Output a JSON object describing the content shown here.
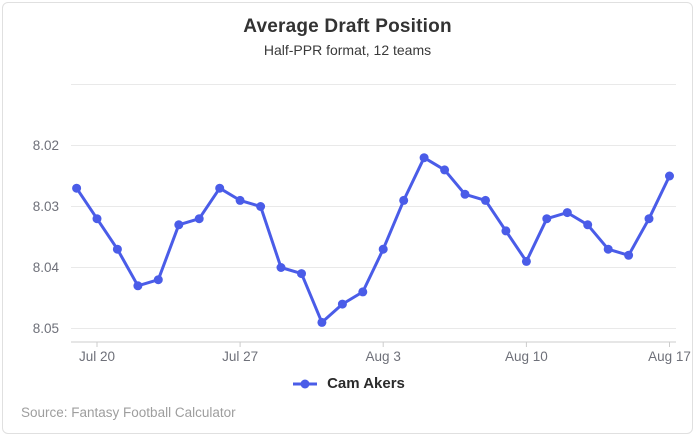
{
  "card": {
    "title": "Average Draft Position",
    "subtitle": "Half-PPR format, 12 teams",
    "source": "Source: Fantasy Football Calculator"
  },
  "legend": {
    "series_label": "Cam Akers"
  },
  "colors": {
    "line": "#4a5ce8",
    "grid": "#e9e9e9",
    "axis": "#cccccc",
    "tick_label": "#6e7079",
    "title_text": "#333333",
    "source_text": "#9e9e9e"
  },
  "chart_data": {
    "type": "line",
    "title": "Average Draft Position",
    "subtitle": "Half-PPR format, 12 teams",
    "x": [
      "Jul 19",
      "Jul 20",
      "Jul 21",
      "Jul 22",
      "Jul 23",
      "Jul 24",
      "Jul 25",
      "Jul 26",
      "Jul 27",
      "Jul 28",
      "Jul 29",
      "Jul 30",
      "Jul 31",
      "Aug 1",
      "Aug 2",
      "Aug 3",
      "Aug 4",
      "Aug 5",
      "Aug 6",
      "Aug 7",
      "Aug 8",
      "Aug 9",
      "Aug 10",
      "Aug 11",
      "Aug 12",
      "Aug 13",
      "Aug 14",
      "Aug 15",
      "Aug 16",
      "Aug 17"
    ],
    "series": [
      {
        "name": "Cam Akers",
        "values": [
          8.027,
          8.032,
          8.037,
          8.043,
          8.042,
          8.033,
          8.032,
          8.027,
          8.029,
          8.03,
          8.04,
          8.041,
          8.049,
          8.046,
          8.044,
          8.037,
          8.029,
          8.022,
          8.024,
          8.028,
          8.029,
          8.034,
          8.039,
          8.032,
          8.031,
          8.033,
          8.037,
          8.038,
          8.032,
          8.025
        ]
      }
    ],
    "xticks": [
      {
        "label": "Jul 20",
        "index": 1
      },
      {
        "label": "Jul 27",
        "index": 8
      },
      {
        "label": "Aug 3",
        "index": 15
      },
      {
        "label": "Aug 10",
        "index": 22
      },
      {
        "label": "Aug 17",
        "index": 29
      }
    ],
    "yticks": [
      8.02,
      8.03,
      8.04,
      8.05
    ],
    "grid_values": [
      8.01,
      8.02,
      8.03,
      8.04,
      8.05
    ],
    "y_axis_inverted": true,
    "ylim": [
      8.01,
      8.052
    ],
    "grid": true,
    "legend_position": "bottom",
    "xlabel": "",
    "ylabel": ""
  }
}
